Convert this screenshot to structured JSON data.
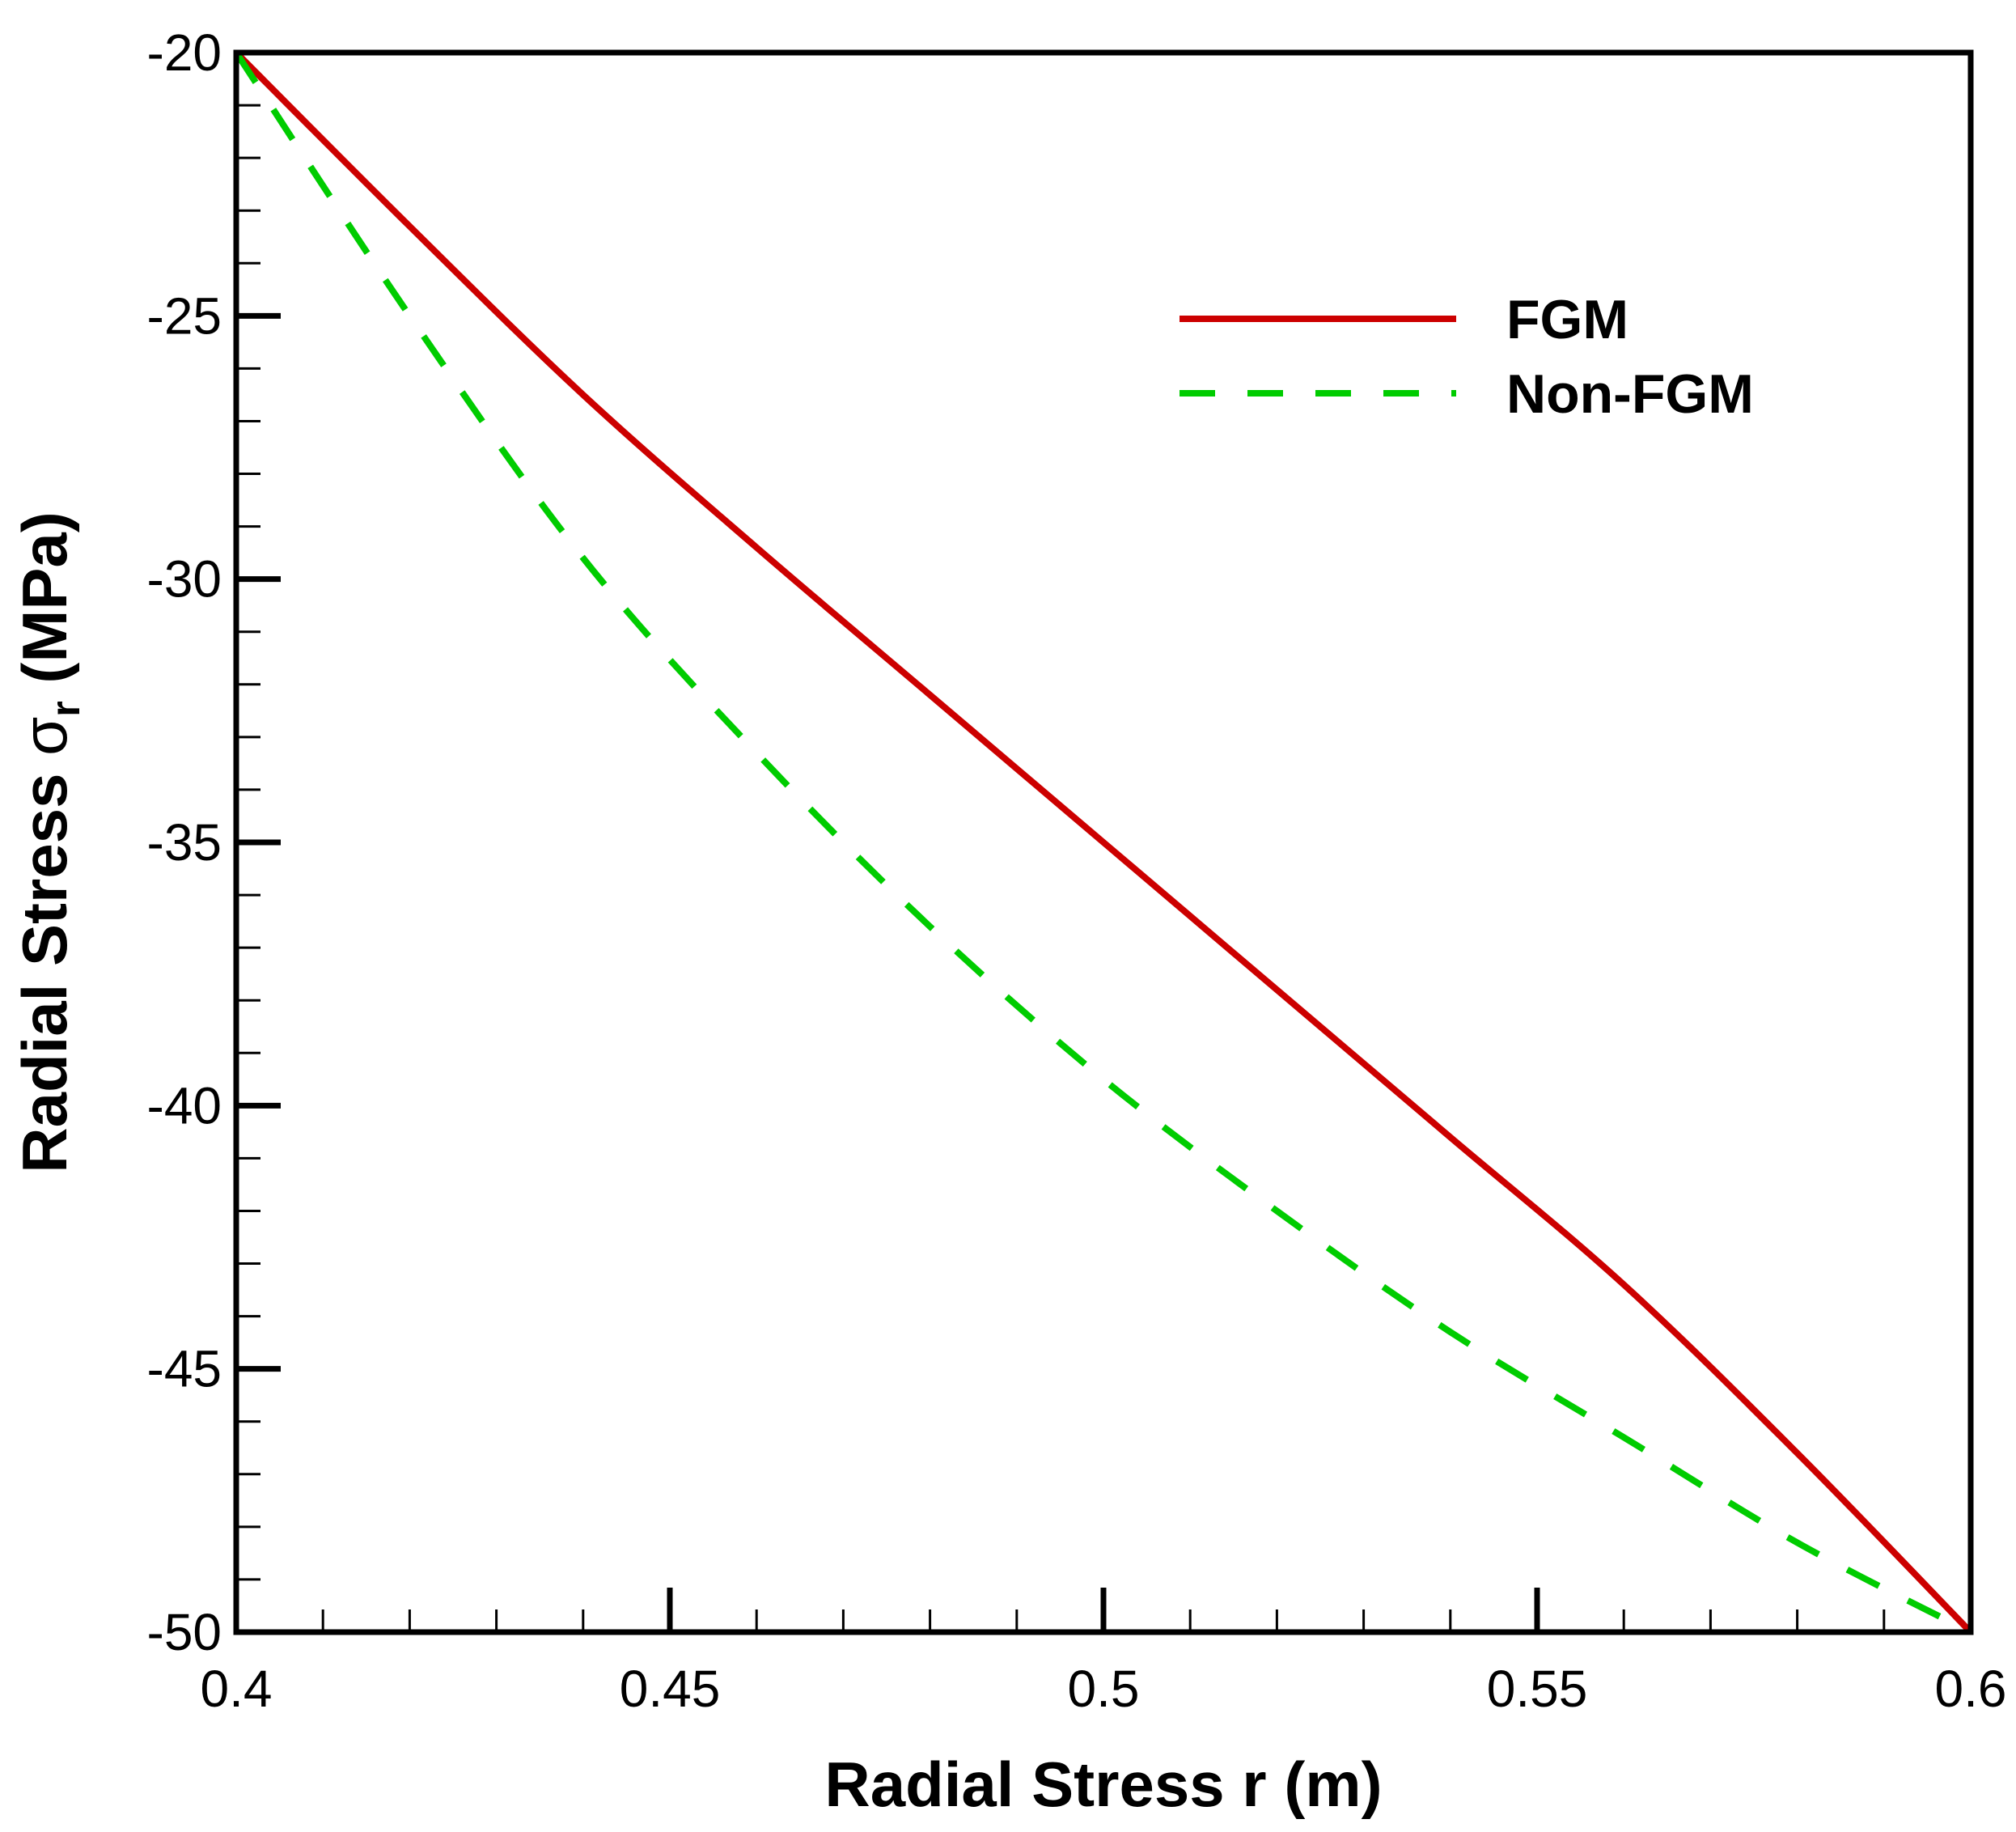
{
  "chart_data": {
    "type": "line",
    "title": "",
    "xlabel": "Radial Stress r (m)",
    "ylabel": {
      "prefix": "Radial Stress ",
      "symbol": "σ",
      "subscript": "r",
      "suffix": " (MPa)"
    },
    "xlim": [
      0.4,
      0.6
    ],
    "ylim": [
      -50,
      -20
    ],
    "x_ticks": [
      0.4,
      0.45,
      0.5,
      0.55,
      0.6
    ],
    "x_tick_labels": [
      "0.4",
      "0.45",
      "0.5",
      "0.55",
      "0.6"
    ],
    "x_minor_step": 0.01,
    "y_ticks": [
      -20,
      -25,
      -30,
      -35,
      -40,
      -45,
      -50
    ],
    "y_tick_labels": [
      "-20",
      "-25",
      "-30",
      "-35",
      "-40",
      "-45",
      "-50"
    ],
    "y_minor_step": 1,
    "grid": false,
    "legend_position": "top-right",
    "series": [
      {
        "name": "FGM",
        "style": "solid",
        "color": "#cc0000",
        "x": [
          0.4,
          0.42,
          0.44,
          0.46,
          0.48,
          0.5,
          0.52,
          0.54,
          0.56,
          0.58,
          0.6
        ],
        "values": [
          -20.0,
          -23.3,
          -26.5,
          -29.4,
          -32.2,
          -35.0,
          -37.8,
          -40.6,
          -43.4,
          -46.6,
          -50.0
        ]
      },
      {
        "name": "Non-FGM",
        "style": "dashed",
        "color": "#00cc00",
        "x": [
          0.4,
          0.42,
          0.44,
          0.46,
          0.48,
          0.5,
          0.52,
          0.54,
          0.56,
          0.58,
          0.6
        ],
        "values": [
          -20.0,
          -25.0,
          -29.6,
          -33.3,
          -36.6,
          -39.5,
          -42.0,
          -44.3,
          -46.3,
          -48.3,
          -50.0
        ]
      }
    ]
  }
}
